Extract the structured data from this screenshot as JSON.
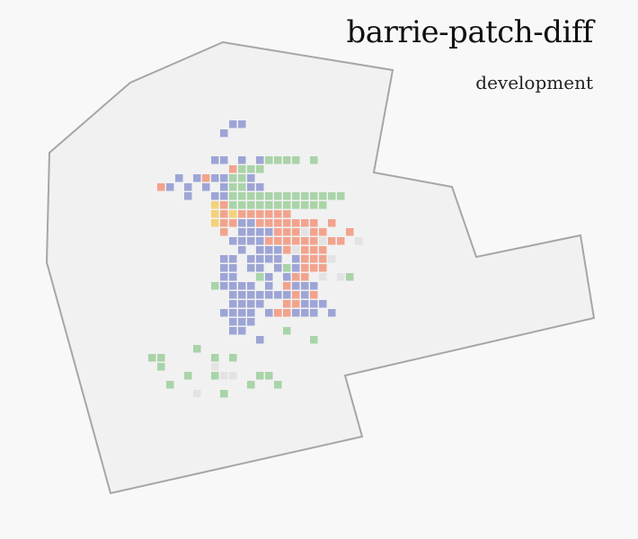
{
  "title": "barrie-patch-diff",
  "subtitle": "development",
  "colors": {
    "background": "#f8f8f8",
    "region_fill": "#f1f1f1",
    "region_stroke": "#a6a6a6",
    "blue": "#9da5d6",
    "orange": "#f2a38d",
    "green": "#a9d4a8",
    "yellow": "#f3d27a",
    "gray": "#e3e3e3"
  },
  "chart_data": {
    "type": "heatmap",
    "cell_colors": [
      "blue",
      "orange",
      "green",
      "yellow",
      "gray"
    ],
    "cells": {
      "blue": [
        [
          14,
          4
        ],
        [
          15,
          4
        ],
        [
          13,
          5
        ],
        [
          12,
          8
        ],
        [
          13,
          8
        ],
        [
          15,
          8
        ],
        [
          17,
          8
        ],
        [
          8,
          10
        ],
        [
          10,
          10
        ],
        [
          11,
          10
        ],
        [
          12,
          10
        ],
        [
          13,
          10
        ],
        [
          14,
          10
        ],
        [
          15,
          10
        ],
        [
          16,
          10
        ],
        [
          7,
          11
        ],
        [
          9,
          11
        ],
        [
          11,
          11
        ],
        [
          13,
          11
        ],
        [
          14,
          11
        ],
        [
          15,
          11
        ],
        [
          16,
          11
        ],
        [
          17,
          11
        ],
        [
          9,
          12
        ],
        [
          12,
          12
        ],
        [
          13,
          12
        ],
        [
          14,
          12
        ],
        [
          15,
          12
        ],
        [
          16,
          12
        ],
        [
          17,
          12
        ],
        [
          14,
          15
        ],
        [
          15,
          15
        ],
        [
          16,
          15
        ],
        [
          18,
          15
        ],
        [
          19,
          15
        ],
        [
          15,
          16
        ],
        [
          16,
          16
        ],
        [
          17,
          16
        ],
        [
          18,
          16
        ],
        [
          19,
          16
        ],
        [
          20,
          16
        ],
        [
          21,
          16
        ],
        [
          22,
          16
        ],
        [
          14,
          17
        ],
        [
          15,
          17
        ],
        [
          16,
          17
        ],
        [
          17,
          17
        ],
        [
          18,
          17
        ],
        [
          19,
          17
        ],
        [
          20,
          17
        ],
        [
          21,
          17
        ],
        [
          22,
          17
        ],
        [
          15,
          18
        ],
        [
          17,
          18
        ],
        [
          18,
          18
        ],
        [
          19,
          18
        ],
        [
          20,
          18
        ],
        [
          21,
          18
        ],
        [
          22,
          18
        ],
        [
          23,
          18
        ],
        [
          24,
          18
        ],
        [
          13,
          19
        ],
        [
          14,
          19
        ],
        [
          16,
          19
        ],
        [
          17,
          19
        ],
        [
          18,
          19
        ],
        [
          19,
          19
        ],
        [
          21,
          19
        ],
        [
          22,
          19
        ],
        [
          23,
          19
        ],
        [
          13,
          20
        ],
        [
          14,
          20
        ],
        [
          16,
          20
        ],
        [
          17,
          20
        ],
        [
          19,
          20
        ],
        [
          20,
          20
        ],
        [
          21,
          20
        ],
        [
          22,
          20
        ],
        [
          23,
          20
        ],
        [
          13,
          21
        ],
        [
          14,
          21
        ],
        [
          17,
          21
        ],
        [
          18,
          21
        ],
        [
          20,
          21
        ],
        [
          22,
          21
        ],
        [
          13,
          22
        ],
        [
          14,
          22
        ],
        [
          15,
          22
        ],
        [
          16,
          22
        ],
        [
          18,
          22
        ],
        [
          20,
          22
        ],
        [
          21,
          22
        ],
        [
          22,
          22
        ],
        [
          23,
          22
        ],
        [
          14,
          23
        ],
        [
          15,
          23
        ],
        [
          16,
          23
        ],
        [
          17,
          23
        ],
        [
          18,
          23
        ],
        [
          19,
          23
        ],
        [
          20,
          23
        ],
        [
          21,
          23
        ],
        [
          22,
          23
        ],
        [
          23,
          23
        ],
        [
          14,
          24
        ],
        [
          15,
          24
        ],
        [
          16,
          24
        ],
        [
          17,
          24
        ],
        [
          21,
          24
        ],
        [
          22,
          24
        ],
        [
          23,
          24
        ],
        [
          24,
          24
        ],
        [
          13,
          25
        ],
        [
          14,
          25
        ],
        [
          15,
          25
        ],
        [
          16,
          25
        ],
        [
          18,
          25
        ],
        [
          19,
          25
        ],
        [
          20,
          25
        ],
        [
          21,
          25
        ],
        [
          22,
          25
        ],
        [
          23,
          25
        ],
        [
          25,
          25
        ],
        [
          14,
          26
        ],
        [
          15,
          26
        ],
        [
          16,
          26
        ],
        [
          14,
          27
        ],
        [
          15,
          27
        ],
        [
          17,
          28
        ]
      ],
      "orange": [
        [
          14,
          9
        ],
        [
          11,
          10
        ],
        [
          6,
          11
        ],
        [
          13,
          13
        ],
        [
          14,
          13
        ],
        [
          12,
          14
        ],
        [
          13,
          14
        ],
        [
          14,
          14
        ],
        [
          15,
          14
        ],
        [
          12,
          15
        ],
        [
          13,
          15
        ],
        [
          14,
          15
        ],
        [
          16,
          14
        ],
        [
          17,
          14
        ],
        [
          13,
          16
        ],
        [
          17,
          14
        ],
        [
          18,
          14
        ],
        [
          19,
          14
        ],
        [
          20,
          14
        ],
        [
          17,
          15
        ],
        [
          18,
          15
        ],
        [
          19,
          15
        ],
        [
          20,
          15
        ],
        [
          21,
          15
        ],
        [
          22,
          15
        ],
        [
          23,
          15
        ],
        [
          19,
          16
        ],
        [
          20,
          16
        ],
        [
          21,
          16
        ],
        [
          22,
          16
        ],
        [
          23,
          16
        ],
        [
          24,
          16
        ],
        [
          18,
          17
        ],
        [
          19,
          17
        ],
        [
          20,
          17
        ],
        [
          21,
          17
        ],
        [
          22,
          17
        ],
        [
          23,
          17
        ],
        [
          24,
          17
        ],
        [
          25,
          17
        ],
        [
          20,
          18
        ],
        [
          21,
          18
        ],
        [
          22,
          18
        ],
        [
          23,
          18
        ],
        [
          24,
          18
        ],
        [
          22,
          19
        ],
        [
          23,
          19
        ],
        [
          24,
          19
        ],
        [
          22,
          20
        ],
        [
          23,
          20
        ],
        [
          24,
          20
        ],
        [
          21,
          21
        ],
        [
          22,
          21
        ],
        [
          20,
          22
        ],
        [
          21,
          23
        ],
        [
          23,
          23
        ],
        [
          20,
          24
        ],
        [
          21,
          24
        ],
        [
          19,
          25
        ],
        [
          20,
          25
        ],
        [
          25,
          15
        ],
        [
          27,
          16
        ],
        [
          26,
          17
        ]
      ],
      "green": [
        [
          18,
          8
        ],
        [
          19,
          8
        ],
        [
          20,
          8
        ],
        [
          21,
          8
        ],
        [
          23,
          8
        ],
        [
          15,
          9
        ],
        [
          16,
          9
        ],
        [
          17,
          9
        ],
        [
          14,
          10
        ],
        [
          15,
          10
        ],
        [
          14,
          11
        ],
        [
          15,
          11
        ],
        [
          14,
          12
        ],
        [
          15,
          12
        ],
        [
          16,
          12
        ],
        [
          17,
          12
        ],
        [
          18,
          12
        ],
        [
          19,
          12
        ],
        [
          20,
          12
        ],
        [
          21,
          12
        ],
        [
          22,
          12
        ],
        [
          23,
          12
        ],
        [
          24,
          12
        ],
        [
          25,
          12
        ],
        [
          26,
          12
        ],
        [
          14,
          13
        ],
        [
          15,
          13
        ],
        [
          16,
          13
        ],
        [
          17,
          13
        ],
        [
          18,
          13
        ],
        [
          19,
          13
        ],
        [
          20,
          13
        ],
        [
          21,
          13
        ],
        [
          22,
          13
        ],
        [
          23,
          13
        ],
        [
          24,
          13
        ],
        [
          20,
          20
        ],
        [
          17,
          21
        ],
        [
          12,
          22
        ],
        [
          27,
          21
        ],
        [
          20,
          27
        ],
        [
          23,
          28
        ],
        [
          10,
          29
        ],
        [
          5,
          30
        ],
        [
          6,
          30
        ],
        [
          12,
          30
        ],
        [
          14,
          30
        ],
        [
          6,
          31
        ],
        [
          9,
          32
        ],
        [
          12,
          32
        ],
        [
          14,
          32
        ],
        [
          17,
          32
        ],
        [
          18,
          32
        ],
        [
          7,
          33
        ],
        [
          16,
          33
        ],
        [
          19,
          33
        ],
        [
          13,
          34
        ]
      ],
      "yellow": [
        [
          12,
          13
        ],
        [
          12,
          14
        ],
        [
          14,
          14
        ],
        [
          12,
          15
        ]
      ],
      "gray": [
        [
          22,
          16
        ],
        [
          24,
          17
        ],
        [
          28,
          17
        ],
        [
          21,
          18
        ],
        [
          25,
          19
        ],
        [
          24,
          21
        ],
        [
          26,
          21
        ],
        [
          12,
          31
        ],
        [
          13,
          32
        ],
        [
          14,
          32
        ],
        [
          10,
          34
        ]
      ]
    }
  }
}
